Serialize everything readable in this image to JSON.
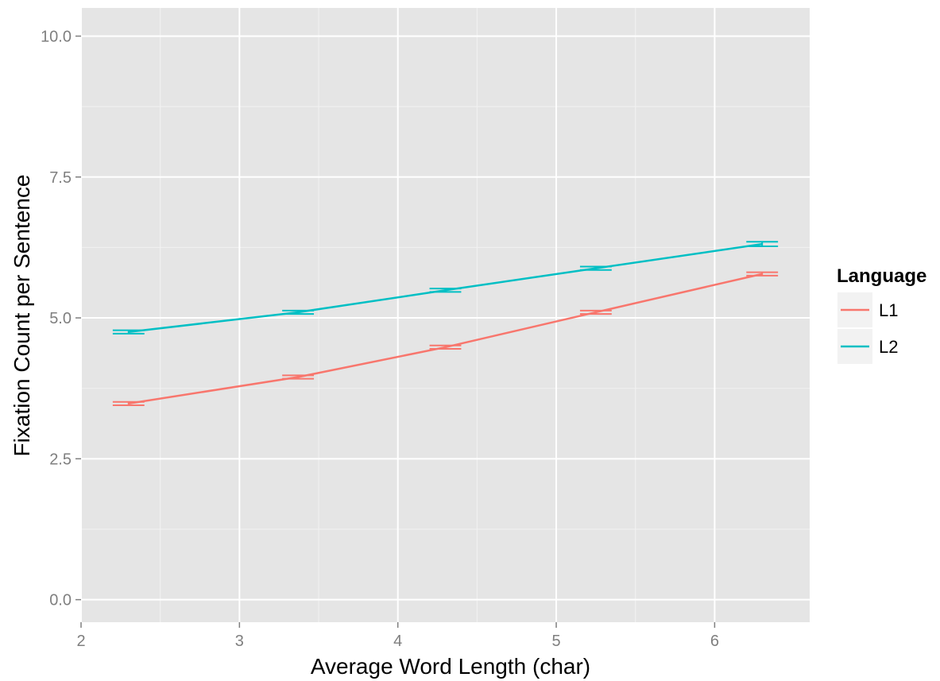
{
  "chart_data": {
    "type": "line",
    "title": "",
    "xlabel": "Average Word Length (char)",
    "ylabel": "Fixation Count per Sentence",
    "xlim": [
      2,
      6.6
    ],
    "ylim": [
      -0.4,
      10.5
    ],
    "x_ticks": [
      2,
      3,
      4,
      5,
      6
    ],
    "x_tick_labels": [
      "2",
      "3",
      "4",
      "5",
      "6"
    ],
    "y_ticks": [
      0.0,
      2.5,
      5.0,
      7.5,
      10.0
    ],
    "y_tick_labels": [
      "0.0",
      "2.5",
      "5.0",
      "7.5",
      "10.0"
    ],
    "grid": true,
    "legend": {
      "title": "Language",
      "placement": "right"
    },
    "error_bar_half_width": 0.1,
    "series": [
      {
        "name": "L1",
        "color": "#F8766D",
        "x": [
          2.3,
          3.37,
          4.3,
          5.25,
          6.3
        ],
        "y": [
          3.48,
          3.95,
          4.48,
          5.1,
          5.78
        ],
        "err": [
          0.03,
          0.03,
          0.03,
          0.03,
          0.03
        ]
      },
      {
        "name": "L2",
        "color": "#00BFC4",
        "x": [
          2.3,
          3.37,
          4.3,
          5.25,
          6.3
        ],
        "y": [
          4.75,
          5.1,
          5.49,
          5.88,
          6.31
        ],
        "err": [
          0.03,
          0.03,
          0.03,
          0.03,
          0.04
        ]
      }
    ]
  }
}
